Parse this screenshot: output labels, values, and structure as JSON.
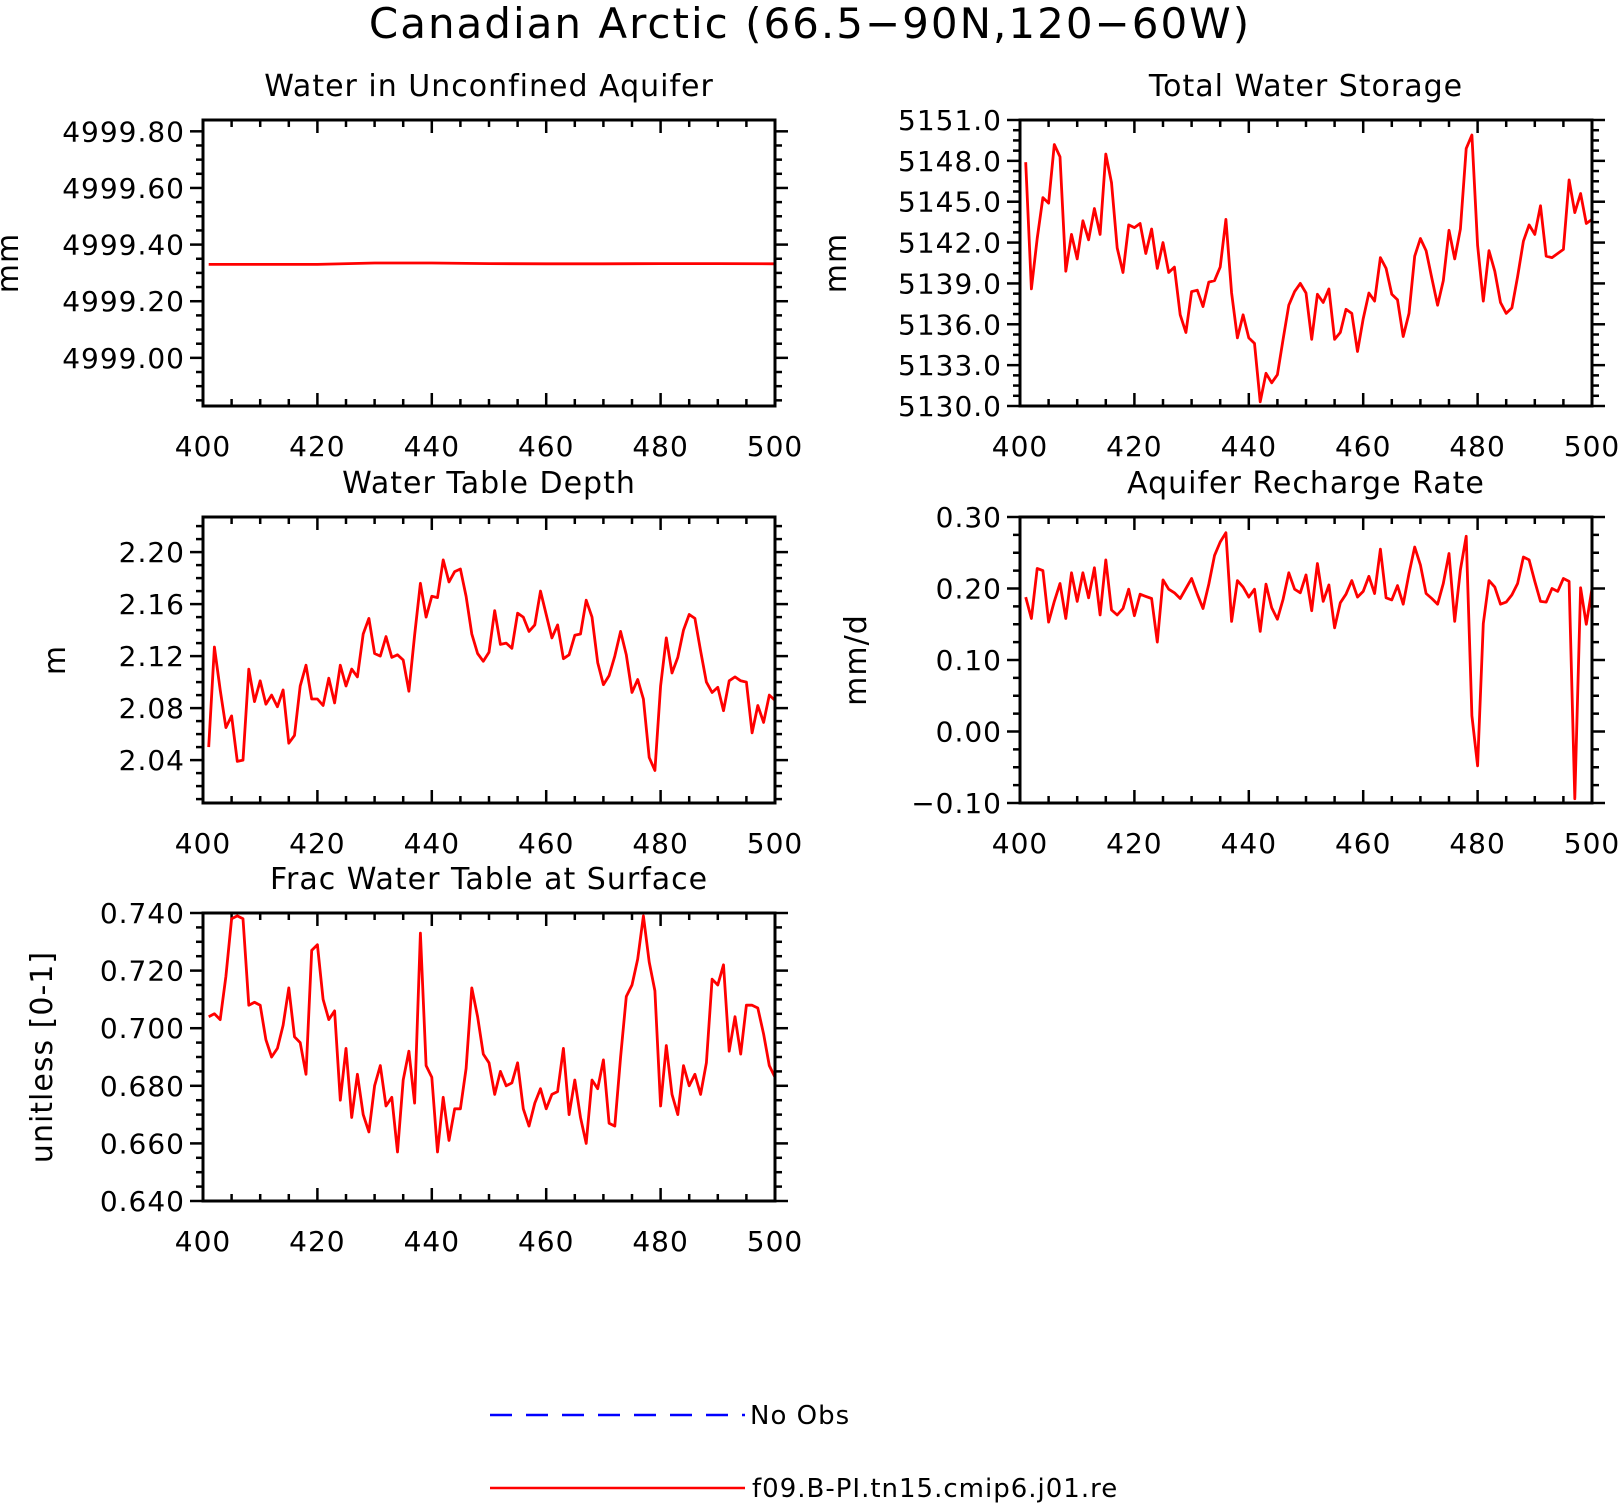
{
  "title": "Canadian Arctic (66.5-90N,120-60W)",
  "colors": {
    "model": "#ff0000",
    "obs": "#0000ff",
    "axes": "#000000"
  },
  "legend": {
    "position": "bottom-center",
    "entries": [
      {
        "label": "No Obs",
        "color": "#0000ff",
        "style": "dashed"
      },
      {
        "label": "f09.B-PI.tn15.cmip6.j01.re",
        "color": "#ff0000",
        "style": "solid"
      }
    ]
  },
  "chart_data": [
    {
      "type": "line",
      "title": "Water in Unconfined Aquifer",
      "ylabel": "mm",
      "xlim": [
        400,
        500
      ],
      "ylim": [
        4998.83,
        4999.84
      ],
      "xticks": [
        400,
        420,
        440,
        460,
        480,
        500
      ],
      "xtick_labels": [
        "400",
        "420",
        "440",
        "460",
        "480",
        "500"
      ],
      "yticks": [
        4999.0,
        4999.2,
        4999.4,
        4999.6,
        4999.8
      ],
      "ytick_labels": [
        "4999.00",
        "4999.20",
        "4999.40",
        "4999.60",
        "4999.80"
      ],
      "series": [
        {
          "color": "#ff0000",
          "x": [
            401,
            410,
            420,
            430,
            440,
            450,
            460,
            470,
            480,
            490,
            500
          ],
          "y": [
            4999.33,
            4999.33,
            4999.33,
            4999.335,
            4999.335,
            4999.333,
            4999.332,
            4999.332,
            4999.333,
            4999.333,
            4999.332
          ]
        }
      ]
    },
    {
      "type": "line",
      "title": "Total Water Storage",
      "ylabel": "mm",
      "xlim": [
        400,
        500
      ],
      "ylim": [
        5130.0,
        5151.0
      ],
      "xticks": [
        400,
        420,
        440,
        460,
        480,
        500
      ],
      "xtick_labels": [
        "400",
        "420",
        "440",
        "460",
        "480",
        "500"
      ],
      "yticks": [
        5130,
        5133,
        5136,
        5139,
        5142,
        5145,
        5148,
        5151
      ],
      "ytick_labels": [
        "5130.0",
        "5133.0",
        "5136.0",
        "5139.0",
        "5142.0",
        "5145.0",
        "5148.0",
        "5151.0"
      ],
      "series": [
        {
          "color": "#ff0000",
          "x": [
            401,
            402,
            403,
            404,
            405,
            406,
            407,
            408,
            409,
            410,
            411,
            412,
            413,
            414,
            415,
            416,
            417,
            418,
            419,
            420,
            421,
            422,
            423,
            424,
            425,
            426,
            427,
            428,
            429,
            430,
            431,
            432,
            433,
            434,
            435,
            436,
            437,
            438,
            439,
            440,
            441,
            442,
            443,
            444,
            445,
            446,
            447,
            448,
            449,
            450,
            451,
            452,
            453,
            454,
            455,
            456,
            457,
            458,
            459,
            460,
            461,
            462,
            463,
            464,
            465,
            466,
            467,
            468,
            469,
            470,
            471,
            472,
            473,
            474,
            475,
            476,
            477,
            478,
            479,
            480,
            481,
            482,
            483,
            484,
            485,
            486,
            487,
            488,
            489,
            490,
            491,
            492,
            493,
            494,
            495,
            496,
            497,
            498,
            499,
            500
          ],
          "y": [
            5147.9,
            5138.6,
            5142.3,
            5145.3,
            5144.9,
            5149.2,
            5148.3,
            5139.9,
            5142.6,
            5140.8,
            5143.6,
            5142.2,
            5144.5,
            5142.6,
            5148.5,
            5146.4,
            5141.6,
            5139.8,
            5143.3,
            5143.1,
            5143.4,
            5141.2,
            5143.0,
            5140.1,
            5142.0,
            5139.8,
            5140.2,
            5136.7,
            5135.4,
            5138.4,
            5138.5,
            5137.3,
            5139.1,
            5139.2,
            5140.2,
            5143.7,
            5138.3,
            5135.0,
            5136.7,
            5135.0,
            5134.6,
            5130.3,
            5132.4,
            5131.7,
            5132.3,
            5134.9,
            5137.4,
            5138.4,
            5139.0,
            5138.3,
            5134.9,
            5138.2,
            5137.6,
            5138.6,
            5134.9,
            5135.4,
            5137.1,
            5136.8,
            5134.0,
            5136.4,
            5138.3,
            5137.7,
            5140.9,
            5140.1,
            5138.2,
            5137.8,
            5135.1,
            5136.8,
            5141.0,
            5142.3,
            5141.4,
            5139.4,
            5137.4,
            5139.2,
            5142.9,
            5140.8,
            5143.0,
            5148.9,
            5149.9,
            5141.8,
            5137.7,
            5141.4,
            5139.9,
            5137.6,
            5136.8,
            5137.2,
            5139.5,
            5142.1,
            5143.3,
            5142.6,
            5144.7,
            5141.0,
            5140.9,
            5141.2,
            5141.5,
            5146.6,
            5144.2,
            5145.6,
            5143.4,
            5143.7
          ]
        }
      ]
    },
    {
      "type": "line",
      "title": "Water Table Depth",
      "ylabel": "m",
      "xlim": [
        400,
        500
      ],
      "ylim": [
        2.007,
        2.227
      ],
      "xticks": [
        400,
        420,
        440,
        460,
        480,
        500
      ],
      "xtick_labels": [
        "400",
        "420",
        "440",
        "460",
        "480",
        "500"
      ],
      "yticks": [
        2.04,
        2.08,
        2.12,
        2.16,
        2.2
      ],
      "ytick_labels": [
        "2.04",
        "2.08",
        "2.12",
        "2.16",
        "2.20"
      ],
      "series": [
        {
          "color": "#ff0000",
          "x": [
            401,
            402,
            403,
            404,
            405,
            406,
            407,
            408,
            409,
            410,
            411,
            412,
            413,
            414,
            415,
            416,
            417,
            418,
            419,
            420,
            421,
            422,
            423,
            424,
            425,
            426,
            427,
            428,
            429,
            430,
            431,
            432,
            433,
            434,
            435,
            436,
            437,
            438,
            439,
            440,
            441,
            442,
            443,
            444,
            445,
            446,
            447,
            448,
            449,
            450,
            451,
            452,
            453,
            454,
            455,
            456,
            457,
            458,
            459,
            460,
            461,
            462,
            463,
            464,
            465,
            466,
            467,
            468,
            469,
            470,
            471,
            472,
            473,
            474,
            475,
            476,
            477,
            478,
            479,
            480,
            481,
            482,
            483,
            484,
            485,
            486,
            487,
            488,
            489,
            490,
            491,
            492,
            493,
            494,
            495,
            496,
            497,
            498,
            499,
            500
          ],
          "y": [
            2.05,
            2.127,
            2.094,
            2.065,
            2.074,
            2.039,
            2.04,
            2.11,
            2.085,
            2.101,
            2.083,
            2.09,
            2.081,
            2.094,
            2.053,
            2.059,
            2.097,
            2.113,
            2.087,
            2.087,
            2.082,
            2.103,
            2.084,
            2.113,
            2.097,
            2.11,
            2.104,
            2.137,
            2.149,
            2.122,
            2.12,
            2.135,
            2.119,
            2.121,
            2.117,
            2.093,
            2.136,
            2.176,
            2.15,
            2.166,
            2.165,
            2.194,
            2.177,
            2.185,
            2.187,
            2.166,
            2.137,
            2.122,
            2.116,
            2.123,
            2.155,
            2.129,
            2.13,
            2.126,
            2.153,
            2.15,
            2.139,
            2.144,
            2.17,
            2.152,
            2.134,
            2.144,
            2.118,
            2.121,
            2.136,
            2.137,
            2.163,
            2.15,
            2.115,
            2.098,
            2.105,
            2.12,
            2.139,
            2.121,
            2.092,
            2.102,
            2.087,
            2.042,
            2.032,
            2.097,
            2.134,
            2.107,
            2.119,
            2.14,
            2.152,
            2.149,
            2.124,
            2.1,
            2.092,
            2.096,
            2.078,
            2.101,
            2.104,
            2.101,
            2.1,
            2.061,
            2.082,
            2.069,
            2.09,
            2.086
          ]
        }
      ]
    },
    {
      "type": "line",
      "title": "Aquifer Recharge Rate",
      "ylabel": "mm/d",
      "xlim": [
        400,
        500
      ],
      "ylim": [
        -0.1,
        0.3
      ],
      "xticks": [
        400,
        420,
        440,
        460,
        480,
        500
      ],
      "xtick_labels": [
        "400",
        "420",
        "440",
        "460",
        "480",
        "500"
      ],
      "yticks": [
        -0.1,
        0.0,
        0.1,
        0.2,
        0.3
      ],
      "ytick_labels": [
        "-0.10",
        "0.00",
        "0.10",
        "0.20",
        "0.30"
      ],
      "series": [
        {
          "color": "#ff0000",
          "x": [
            401,
            402,
            403,
            404,
            405,
            406,
            407,
            408,
            409,
            410,
            411,
            412,
            413,
            414,
            415,
            416,
            417,
            418,
            419,
            420,
            421,
            422,
            423,
            424,
            425,
            426,
            427,
            428,
            429,
            430,
            431,
            432,
            433,
            434,
            435,
            436,
            437,
            438,
            439,
            440,
            441,
            442,
            443,
            444,
            445,
            446,
            447,
            448,
            449,
            450,
            451,
            452,
            453,
            454,
            455,
            456,
            457,
            458,
            459,
            460,
            461,
            462,
            463,
            464,
            465,
            466,
            467,
            468,
            469,
            470,
            471,
            472,
            473,
            474,
            475,
            476,
            477,
            478,
            479,
            480,
            481,
            482,
            483,
            484,
            485,
            486,
            487,
            488,
            489,
            490,
            491,
            492,
            493,
            494,
            495,
            496,
            497,
            498,
            499,
            500
          ],
          "y": [
            0.188,
            0.158,
            0.228,
            0.225,
            0.153,
            0.182,
            0.207,
            0.158,
            0.222,
            0.182,
            0.222,
            0.187,
            0.229,
            0.163,
            0.24,
            0.17,
            0.163,
            0.172,
            0.199,
            0.162,
            0.192,
            0.189,
            0.186,
            0.125,
            0.212,
            0.199,
            0.194,
            0.186,
            0.2,
            0.214,
            0.192,
            0.172,
            0.206,
            0.246,
            0.265,
            0.278,
            0.154,
            0.211,
            0.202,
            0.188,
            0.199,
            0.14,
            0.206,
            0.173,
            0.157,
            0.185,
            0.222,
            0.199,
            0.194,
            0.219,
            0.169,
            0.235,
            0.182,
            0.205,
            0.145,
            0.18,
            0.192,
            0.211,
            0.188,
            0.196,
            0.217,
            0.193,
            0.255,
            0.187,
            0.184,
            0.204,
            0.178,
            0.221,
            0.258,
            0.233,
            0.193,
            0.186,
            0.178,
            0.207,
            0.249,
            0.154,
            0.226,
            0.273,
            0.022,
            -0.048,
            0.151,
            0.211,
            0.202,
            0.178,
            0.181,
            0.191,
            0.207,
            0.244,
            0.24,
            0.21,
            0.182,
            0.181,
            0.2,
            0.196,
            0.214,
            0.21,
            -0.094,
            0.201,
            0.15,
            0.2
          ]
        }
      ]
    },
    {
      "type": "line",
      "title": "Frac Water Table at Surface",
      "ylabel": "unitless [0-1]",
      "xlim": [
        400,
        500
      ],
      "ylim": [
        0.64,
        0.74
      ],
      "xticks": [
        400,
        420,
        440,
        460,
        480,
        500
      ],
      "xtick_labels": [
        "400",
        "420",
        "440",
        "460",
        "480",
        "500"
      ],
      "yticks": [
        0.64,
        0.66,
        0.68,
        0.7,
        0.72,
        0.74
      ],
      "ytick_labels": [
        "0.640",
        "0.660",
        "0.680",
        "0.700",
        "0.720",
        "0.740"
      ],
      "series": [
        {
          "color": "#ff0000",
          "x": [
            401,
            402,
            403,
            404,
            405,
            406,
            407,
            408,
            409,
            410,
            411,
            412,
            413,
            414,
            415,
            416,
            417,
            418,
            419,
            420,
            421,
            422,
            423,
            424,
            425,
            426,
            427,
            428,
            429,
            430,
            431,
            432,
            433,
            434,
            435,
            436,
            437,
            438,
            439,
            440,
            441,
            442,
            443,
            444,
            445,
            446,
            447,
            448,
            449,
            450,
            451,
            452,
            453,
            454,
            455,
            456,
            457,
            458,
            459,
            460,
            461,
            462,
            463,
            464,
            465,
            466,
            467,
            468,
            469,
            470,
            471,
            472,
            473,
            474,
            475,
            476,
            477,
            478,
            479,
            480,
            481,
            482,
            483,
            484,
            485,
            486,
            487,
            488,
            489,
            490,
            491,
            492,
            493,
            494,
            495,
            496,
            497,
            498,
            499,
            500
          ],
          "y": [
            0.704,
            0.705,
            0.703,
            0.718,
            0.738,
            0.739,
            0.738,
            0.708,
            0.709,
            0.708,
            0.696,
            0.69,
            0.693,
            0.701,
            0.714,
            0.697,
            0.695,
            0.684,
            0.727,
            0.729,
            0.71,
            0.703,
            0.706,
            0.675,
            0.693,
            0.669,
            0.684,
            0.67,
            0.664,
            0.68,
            0.687,
            0.673,
            0.676,
            0.657,
            0.682,
            0.692,
            0.674,
            0.733,
            0.687,
            0.683,
            0.657,
            0.676,
            0.661,
            0.672,
            0.672,
            0.686,
            0.714,
            0.704,
            0.691,
            0.688,
            0.677,
            0.685,
            0.68,
            0.681,
            0.688,
            0.672,
            0.666,
            0.674,
            0.679,
            0.672,
            0.677,
            0.678,
            0.693,
            0.67,
            0.682,
            0.669,
            0.66,
            0.682,
            0.679,
            0.689,
            0.667,
            0.666,
            0.69,
            0.711,
            0.715,
            0.724,
            0.739,
            0.723,
            0.713,
            0.673,
            0.694,
            0.677,
            0.67,
            0.687,
            0.68,
            0.684,
            0.677,
            0.688,
            0.717,
            0.715,
            0.722,
            0.692,
            0.704,
            0.691,
            0.708,
            0.708,
            0.707,
            0.698,
            0.687,
            0.683
          ]
        }
      ]
    }
  ]
}
